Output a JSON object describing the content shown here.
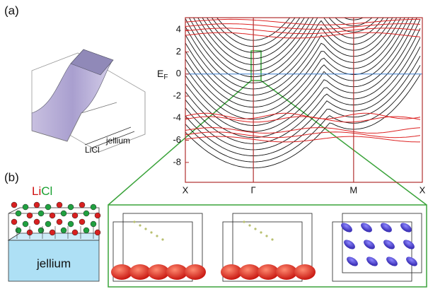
{
  "panel_a": {
    "label": "(a)",
    "surface_labels": [
      "jellium",
      "LiCl"
    ]
  },
  "chart_data": {
    "type": "band-structure",
    "y_label": "E",
    "y_label_sub": "F",
    "ylim": [
      -9.8,
      5.1
    ],
    "yticks": [
      4,
      2,
      0,
      -2,
      -4,
      -6,
      -8
    ],
    "k_points": [
      "X",
      "Γ",
      "M",
      "X"
    ],
    "fermi_level": 0
  },
  "panel_b": {
    "label": "(b)",
    "species": [
      "Li",
      "Cl"
    ],
    "substrate": "jellium"
  }
}
